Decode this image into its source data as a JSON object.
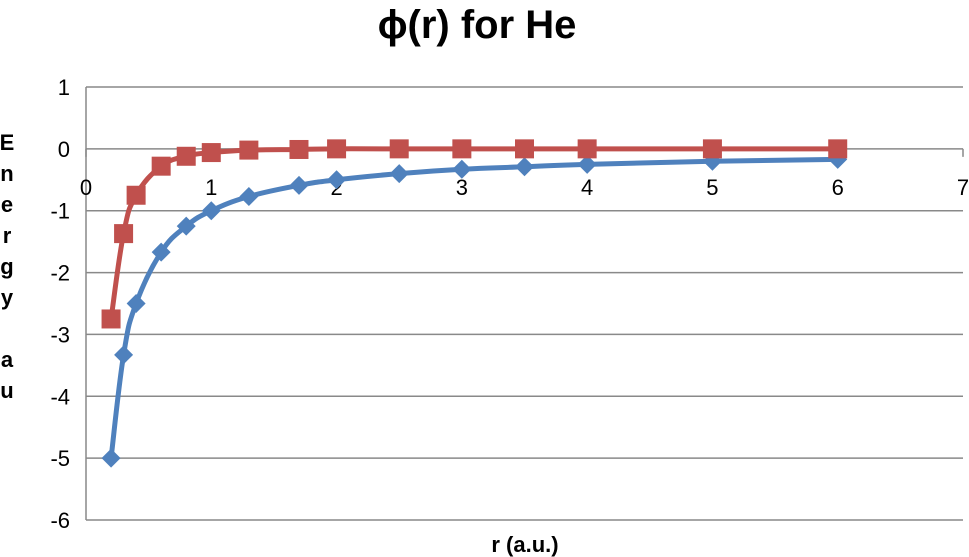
{
  "chart_data": {
    "type": "line",
    "title": "ϕ(r) for He",
    "xlabel": "r (a.u.)",
    "ylabel_chars": [
      "E",
      "n",
      "e",
      "r",
      "g",
      "y",
      "",
      "a",
      "u"
    ],
    "xlim": [
      0,
      7
    ],
    "ylim": [
      -6,
      1
    ],
    "x_ticks": [
      0,
      1,
      2,
      3,
      4,
      5,
      6,
      7
    ],
    "y_ticks": [
      1,
      0,
      -1,
      -2,
      -3,
      -4,
      -5,
      -6
    ],
    "grid": "horizontal",
    "legend": "none",
    "series": [
      {
        "color": "#4F81BD",
        "marker": "diamond",
        "points": [
          {
            "x": 0.2,
            "y": -5.0
          },
          {
            "x": 0.3,
            "y": -3.33
          },
          {
            "x": 0.4,
            "y": -2.5
          },
          {
            "x": 0.6,
            "y": -1.67
          },
          {
            "x": 0.8,
            "y": -1.25
          },
          {
            "x": 1.0,
            "y": -1.0
          },
          {
            "x": 1.3,
            "y": -0.77
          },
          {
            "x": 1.7,
            "y": -0.59
          },
          {
            "x": 2.0,
            "y": -0.5
          },
          {
            "x": 2.5,
            "y": -0.4
          },
          {
            "x": 3.0,
            "y": -0.33
          },
          {
            "x": 3.5,
            "y": -0.29
          },
          {
            "x": 4.0,
            "y": -0.25
          },
          {
            "x": 5.0,
            "y": -0.2
          },
          {
            "x": 6.0,
            "y": -0.17
          }
        ]
      },
      {
        "color": "#C0504D",
        "marker": "square",
        "points": [
          {
            "x": 0.2,
            "y": -2.75
          },
          {
            "x": 0.3,
            "y": -1.37
          },
          {
            "x": 0.4,
            "y": -0.75
          },
          {
            "x": 0.6,
            "y": -0.28
          },
          {
            "x": 0.8,
            "y": -0.12
          },
          {
            "x": 1.0,
            "y": -0.06
          },
          {
            "x": 1.3,
            "y": -0.02
          },
          {
            "x": 1.7,
            "y": -0.01
          },
          {
            "x": 2.0,
            "y": 0.0
          },
          {
            "x": 2.5,
            "y": 0.0
          },
          {
            "x": 3.0,
            "y": 0.0
          },
          {
            "x": 3.5,
            "y": 0.0
          },
          {
            "x": 4.0,
            "y": 0.0
          },
          {
            "x": 5.0,
            "y": 0.0
          },
          {
            "x": 6.0,
            "y": 0.0
          }
        ]
      }
    ]
  }
}
